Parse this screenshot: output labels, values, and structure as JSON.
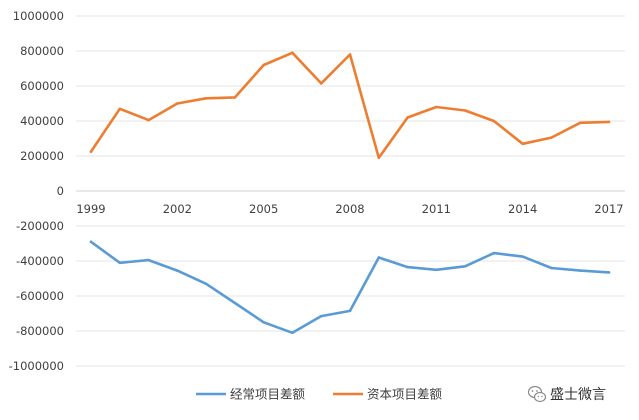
{
  "chart_data": {
    "type": "line",
    "x": [
      1999,
      2000,
      2001,
      2002,
      2003,
      2004,
      2005,
      2006,
      2007,
      2008,
      2009,
      2010,
      2011,
      2012,
      2013,
      2014,
      2015,
      2016,
      2017
    ],
    "x_tick_labels": [
      "1999",
      "2002",
      "2005",
      "2008",
      "2011",
      "2014",
      "2017"
    ],
    "ylim": [
      -1000000,
      1000000
    ],
    "y_tick_labels": [
      "1000000",
      "800000",
      "600000",
      "400000",
      "200000",
      "0",
      "-200000",
      "-400000",
      "-600000",
      "-800000",
      "-1000000"
    ],
    "grid": true,
    "legend_position": "bottom",
    "series": [
      {
        "name": "经常项目差额",
        "color": "#5b9bd5",
        "values": [
          -290000,
          -410000,
          -395000,
          -455000,
          -530000,
          -640000,
          -750000,
          -810000,
          -715000,
          -685000,
          -380000,
          -435000,
          -450000,
          -430000,
          -355000,
          -375000,
          -440000,
          -455000,
          -465000
        ]
      },
      {
        "name": "资本项目差额",
        "color": "#ed7d31",
        "values": [
          225000,
          470000,
          405000,
          500000,
          530000,
          535000,
          720000,
          790000,
          615000,
          780000,
          190000,
          420000,
          480000,
          460000,
          400000,
          270000,
          305000,
          390000,
          395000
        ]
      }
    ]
  },
  "watermark": {
    "text": "盛士微言",
    "icon": "wechat-icon"
  }
}
